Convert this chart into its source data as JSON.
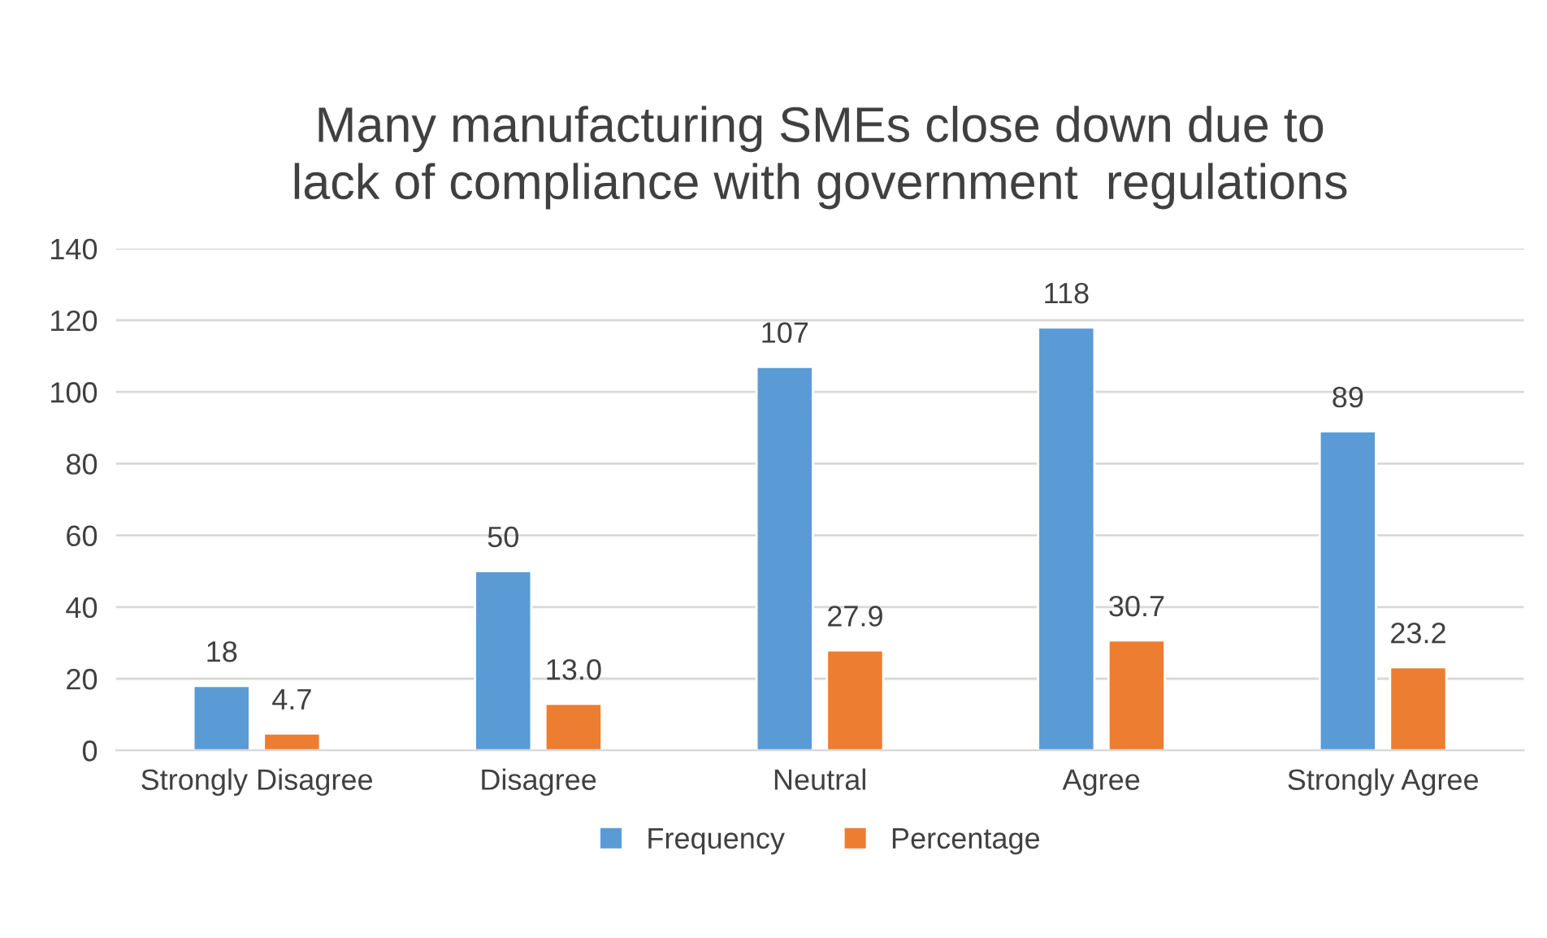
{
  "chart_data": {
    "type": "bar",
    "title": "Many manufacturing SMEs close down due to\nlack of compliance with government  regulations",
    "categories": [
      "Strongly Disagree",
      "Disagree",
      "Neutral",
      "Agree",
      "Strongly Agree"
    ],
    "series": [
      {
        "name": "Frequency",
        "color": "#5b9bd5",
        "values": [
          18,
          50,
          107,
          118,
          89
        ],
        "value_labels": [
          "18",
          "50",
          "107",
          "118",
          "89"
        ]
      },
      {
        "name": "Percentage",
        "color": "#ed7d31",
        "values": [
          4.7,
          13.0,
          27.9,
          30.7,
          23.2
        ],
        "value_labels": [
          "4.7",
          "13.0",
          "27.9",
          "30.7",
          "23.2"
        ]
      }
    ],
    "ylim": [
      0,
      140
    ],
    "yticks": [
      0,
      20,
      40,
      60,
      80,
      100,
      120,
      140
    ],
    "grid": "y",
    "legend": "bottom"
  }
}
